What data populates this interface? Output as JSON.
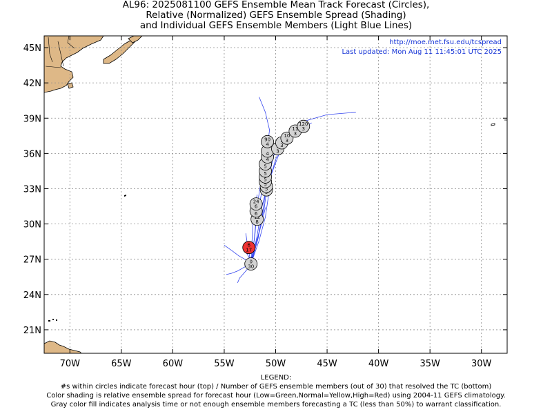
{
  "title": {
    "line1": "AL96: 2025081100 GEFS Ensemble Mean Track Forecast (Circles),",
    "line2": "Relative (Normalized) GEFS Ensemble Spread (Shading)",
    "line3": "and Individual GEFS Ensemble Members (Light Blue Lines)"
  },
  "source_url": "http://moe.met.fsu.edu/tcspread",
  "last_updated": "Last updated: Mon Aug 11 11:45:01 UTC 2025",
  "axes": {
    "lon_ticks": [
      {
        "lon": -70,
        "label": "70W"
      },
      {
        "lon": -65,
        "label": "65W"
      },
      {
        "lon": -60,
        "label": "60W"
      },
      {
        "lon": -55,
        "label": "55W"
      },
      {
        "lon": -50,
        "label": "50W"
      },
      {
        "lon": -45,
        "label": "45W"
      },
      {
        "lon": -40,
        "label": "40W"
      },
      {
        "lon": -35,
        "label": "35W"
      },
      {
        "lon": -30,
        "label": "30W"
      }
    ],
    "lat_ticks": [
      {
        "lat": 45,
        "label": "45N"
      },
      {
        "lat": 42,
        "label": "42N"
      },
      {
        "lat": 39,
        "label": "39N"
      },
      {
        "lat": 36,
        "label": "36N"
      },
      {
        "lat": 33,
        "label": "33N"
      },
      {
        "lat": 30,
        "label": "30N"
      },
      {
        "lat": 27,
        "label": "27N"
      },
      {
        "lat": 24,
        "label": "24N"
      },
      {
        "lat": 21,
        "label": "21N"
      }
    ],
    "lon_range": [
      -72.5,
      -27.5
    ],
    "lat_range": [
      19,
      46
    ]
  },
  "colors": {
    "land": "#deb887",
    "member_tracks": "#3344ee",
    "circle_gray": "#d3d3d3",
    "circle_red": "#ee3333",
    "grid": "#888888",
    "link": "#1533d6"
  },
  "mean_track": [
    {
      "hour": "0",
      "members": "30",
      "lon": -52.4,
      "lat": 26.6,
      "fill": "gray"
    },
    {
      "hour": "6",
      "members": "17",
      "lon": -52.6,
      "lat": 28.0,
      "fill": "red"
    },
    {
      "hour": "12",
      "members": "8",
      "lon": -51.8,
      "lat": 30.4,
      "fill": "gray"
    },
    {
      "hour": "",
      "members": "6",
      "lon": -51.9,
      "lat": 31.1,
      "fill": "gray"
    },
    {
      "hour": "24",
      "members": "6",
      "lon": -51.9,
      "lat": 31.7,
      "fill": "gray"
    },
    {
      "hour": "",
      "members": "5",
      "lon": -50.9,
      "lat": 32.9,
      "fill": "gray"
    },
    {
      "hour": "",
      "members": "5",
      "lon": -50.9,
      "lat": 33.2,
      "fill": "gray"
    },
    {
      "hour": "",
      "members": "5",
      "lon": -51.0,
      "lat": 33.6,
      "fill": "gray"
    },
    {
      "hour": "",
      "members": "5",
      "lon": -51.0,
      "lat": 34.0,
      "fill": "gray"
    },
    {
      "hour": "",
      "members": "5",
      "lon": -51.0,
      "lat": 34.5,
      "fill": "gray"
    },
    {
      "hour": "",
      "members": "5",
      "lon": -51.0,
      "lat": 35.1,
      "fill": "gray"
    },
    {
      "hour": "",
      "members": "4",
      "lon": -50.8,
      "lat": 35.7,
      "fill": "gray"
    },
    {
      "hour": "",
      "members": "4",
      "lon": -50.8,
      "lat": 36.2,
      "fill": "gray"
    },
    {
      "hour": "90",
      "members": "4",
      "lon": -50.8,
      "lat": 37.0,
      "fill": "gray"
    },
    {
      "hour": "9",
      "members": "3",
      "lon": -49.8,
      "lat": 36.4,
      "fill": "gray"
    },
    {
      "hour": "1",
      "members": "3",
      "lon": -49.4,
      "lat": 36.9,
      "fill": "gray"
    },
    {
      "hour": "10",
      "members": "3",
      "lon": -48.9,
      "lat": 37.3,
      "fill": "gray"
    },
    {
      "hour": "11",
      "members": "3",
      "lon": -48.1,
      "lat": 37.9,
      "fill": "gray"
    },
    {
      "hour": "120",
      "members": "3",
      "lon": -47.3,
      "lat": 38.3,
      "fill": "gray"
    }
  ],
  "member_tracks": [
    [
      [
        -52.4,
        26.6
      ],
      [
        -52.1,
        28.5
      ],
      [
        -51.9,
        30.5
      ],
      [
        -51.5,
        32.0
      ],
      [
        -51.2,
        33.5
      ],
      [
        -51.0,
        35.0
      ],
      [
        -50.8,
        36.5
      ],
      [
        -50.6,
        38.0
      ],
      [
        -51.0,
        39.5
      ],
      [
        -51.6,
        40.8
      ]
    ],
    [
      [
        -52.4,
        26.6
      ],
      [
        -51.7,
        28.8
      ],
      [
        -51.3,
        30.8
      ],
      [
        -51.0,
        32.6
      ],
      [
        -50.6,
        34.2
      ],
      [
        -50.2,
        35.8
      ],
      [
        -49.5,
        37.0
      ],
      [
        -48.5,
        38.0
      ],
      [
        -47.0,
        38.8
      ],
      [
        -45.0,
        39.3
      ],
      [
        -42.2,
        39.5
      ]
    ],
    [
      [
        -52.4,
        26.6
      ],
      [
        -51.6,
        28.6
      ],
      [
        -51.0,
        30.6
      ],
      [
        -50.7,
        32.4
      ],
      [
        -50.5,
        34.0
      ],
      [
        -50.0,
        35.5
      ],
      [
        -49.4,
        36.7
      ],
      [
        -48.6,
        37.6
      ],
      [
        -47.5,
        38.3
      ],
      [
        -46.5,
        38.6
      ]
    ],
    [
      [
        -52.4,
        26.6
      ],
      [
        -51.8,
        29.0
      ],
      [
        -51.4,
        31.2
      ],
      [
        -50.9,
        33.0
      ],
      [
        -50.3,
        34.5
      ],
      [
        -49.7,
        35.9
      ],
      [
        -49.0,
        37.0
      ],
      [
        -48.0,
        37.9
      ],
      [
        -47.1,
        38.4
      ]
    ],
    [
      [
        -52.4,
        26.6
      ],
      [
        -52.0,
        29.2
      ],
      [
        -51.8,
        31.5
      ],
      [
        -51.5,
        33.2
      ],
      [
        -51.3,
        34.8
      ],
      [
        -51.2,
        36.2
      ],
      [
        -51.0,
        37.4
      ]
    ],
    [
      [
        -52.4,
        26.6
      ],
      [
        -51.9,
        28.2
      ],
      [
        -51.5,
        29.8
      ],
      [
        -51.1,
        31.4
      ],
      [
        -50.9,
        32.8
      ]
    ],
    [
      [
        -52.4,
        26.6
      ],
      [
        -52.1,
        27.8
      ],
      [
        -51.7,
        29.0
      ],
      [
        -51.3,
        30.2
      ],
      [
        -51.0,
        31.4
      ]
    ],
    [
      [
        -52.4,
        26.6
      ],
      [
        -52.3,
        28.5
      ],
      [
        -52.2,
        30.2
      ],
      [
        -52.0,
        31.6
      ],
      [
        -51.8,
        32.5
      ]
    ],
    [
      [
        -52.4,
        26.6
      ],
      [
        -53.0,
        27.0
      ],
      [
        -53.6,
        27.3
      ],
      [
        -54.2,
        27.7
      ],
      [
        -55.0,
        28.2
      ]
    ],
    [
      [
        -52.4,
        26.6
      ],
      [
        -52.8,
        26.1
      ],
      [
        -53.2,
        25.7
      ],
      [
        -53.5,
        25.4
      ],
      [
        -53.7,
        25.0
      ]
    ],
    [
      [
        -52.4,
        26.6
      ],
      [
        -53.1,
        26.3
      ],
      [
        -53.7,
        26.0
      ],
      [
        -54.3,
        25.8
      ],
      [
        -54.8,
        25.7
      ]
    ],
    [
      [
        -52.4,
        26.6
      ],
      [
        -52.6,
        27.2
      ],
      [
        -52.9,
        27.6
      ],
      [
        -53.2,
        28.0
      ]
    ],
    [
      [
        -52.4,
        26.6
      ],
      [
        -52.6,
        27.6
      ],
      [
        -52.8,
        28.6
      ],
      [
        -52.9,
        29.2
      ]
    ]
  ],
  "legend": {
    "heading": "LEGEND:",
    "line1": "#s within circles indicate forecast hour (top) / Number of GEFS ensemble members (out of 30) that resolved the TC (bottom)",
    "line2": "Color shading is relative ensemble spread for forecast hour (Low=Green,Normal=Yellow,High=Red) using 2004-11 GEFS climatology.",
    "line3": "Gray color fill indicates analysis time or not enough ensemble members forecasting a TC (less than 50%) to warrant classification."
  }
}
